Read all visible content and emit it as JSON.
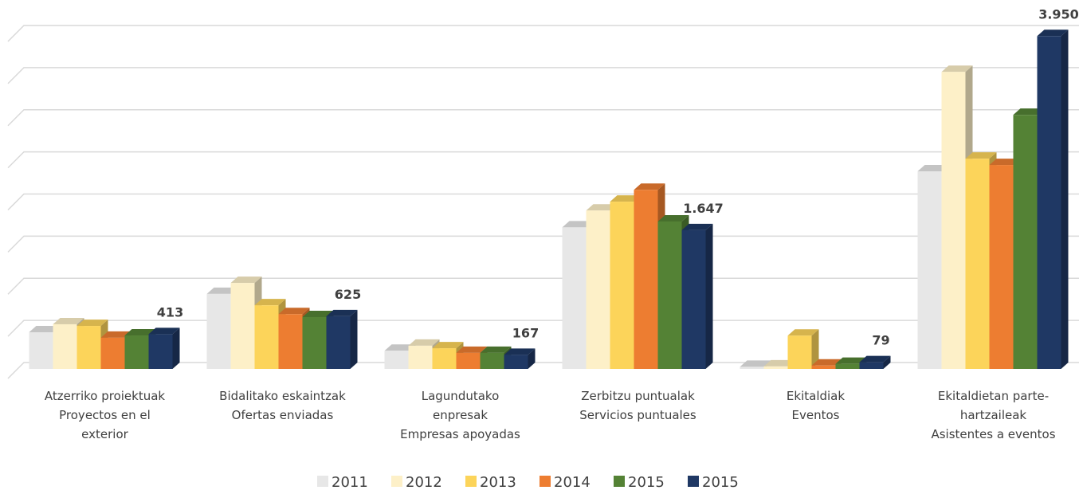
{
  "chart_data": {
    "type": "bar3d",
    "categories": [
      [
        "Atzerriko proiektuak",
        "Proyectos en el",
        "exterior"
      ],
      [
        "Bidalitako eskaintzak",
        "Ofertas enviadas"
      ],
      [
        "Lagundutako",
        "enpresak",
        "Empresas apoyadas"
      ],
      [
        "Zerbitzu puntualak",
        "Servicios puntuales"
      ],
      [
        "Ekitaldiak",
        "Eventos"
      ],
      [
        "Ekitaldietan parte-",
        "hartzaileak",
        "Asistentes a eventos"
      ]
    ],
    "series": [
      {
        "name": "2011",
        "color": "#e7e7e7",
        "values": [
          435,
          890,
          215,
          1680,
          25,
          2345
        ]
      },
      {
        "name": "2012",
        "color": "#fdf0c8",
        "values": [
          530,
          1020,
          275,
          1880,
          30,
          3525
        ]
      },
      {
        "name": "2013",
        "color": "#fcd45a",
        "values": [
          510,
          755,
          245,
          1985,
          395,
          2495
        ]
      },
      {
        "name": "2014",
        "color": "#ed7d31",
        "values": [
          370,
          650,
          190,
          2125,
          40,
          2420
        ]
      },
      {
        "name": "2015",
        "color": "#548235",
        "values": [
          397,
          615,
          190,
          1750,
          60,
          3015
        ]
      },
      {
        "name": "2015",
        "color": "#1f3864",
        "values": [
          413,
          625,
          167,
          1647,
          79,
          3950
        ],
        "value_labels": [
          "413",
          "625",
          "167",
          "1.647",
          "79",
          "3.950"
        ]
      }
    ],
    "ylim": [
      0,
      4000
    ],
    "yticks": [
      0,
      500,
      1000,
      1500,
      2000,
      2500,
      3000,
      3500,
      4000
    ],
    "grid": true
  }
}
